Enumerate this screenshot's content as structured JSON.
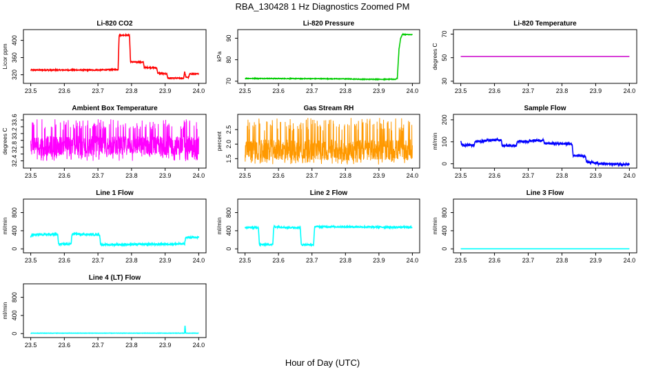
{
  "figure": {
    "title": "RBA_130428  1 Hz Diagnostics Zoomed PM",
    "xlabel": "Hour of Day (UTC)"
  },
  "chart_data": [
    {
      "type": "line",
      "title": "Li-820 CO2",
      "ylabel": "Licor ppm",
      "color": "#ff0000",
      "xlim": [
        23.5,
        24.0
      ],
      "ylim": [
        305,
        420
      ],
      "x_ticks": [
        23.5,
        23.6,
        23.7,
        23.8,
        23.9,
        24.0
      ],
      "y_ticks": [
        320,
        360,
        400
      ],
      "x_tick_labels": [
        "23.5",
        "23.6",
        "23.7",
        "23.8",
        "23.9",
        "24.0"
      ],
      "y_tick_labels": [
        "320",
        "360",
        "400"
      ],
      "noise": 1.2,
      "series": [
        {
          "points": [
            [
              23.5,
              331
            ],
            [
              23.7,
              331
            ],
            [
              23.76,
              332
            ],
            [
              23.763,
              412
            ],
            [
              23.794,
              412
            ],
            [
              23.797,
              350
            ],
            [
              23.835,
              349
            ],
            [
              23.838,
              337
            ],
            [
              23.875,
              336
            ],
            [
              23.878,
              324
            ],
            [
              23.905,
              322
            ],
            [
              23.908,
              312
            ],
            [
              23.955,
              312
            ],
            [
              23.958,
              327
            ],
            [
              23.962,
              314
            ],
            [
              23.97,
              314
            ],
            [
              23.973,
              322
            ],
            [
              24.0,
              322
            ]
          ]
        }
      ]
    },
    {
      "type": "line",
      "title": "Li-820 Pressure",
      "ylabel": "kPa",
      "color": "#00cc00",
      "xlim": [
        23.5,
        24.0
      ],
      "ylim": [
        70,
        93
      ],
      "x_ticks": [
        23.5,
        23.6,
        23.7,
        23.8,
        23.9,
        24.0
      ],
      "y_ticks": [
        70,
        80,
        90
      ],
      "x_tick_labels": [
        "23.5",
        "23.6",
        "23.7",
        "23.8",
        "23.9",
        "24.0"
      ],
      "y_tick_labels": [
        "70",
        "80",
        "90"
      ],
      "noise": 0.15,
      "series": [
        {
          "points": [
            [
              23.5,
              71.3
            ],
            [
              23.65,
              71.2
            ],
            [
              23.8,
              71.1
            ],
            [
              23.85,
              70.9
            ],
            [
              23.95,
              70.9
            ],
            [
              23.955,
              71.5
            ],
            [
              23.96,
              85
            ],
            [
              23.965,
              90
            ],
            [
              23.97,
              91.8
            ],
            [
              24.0,
              91.6
            ]
          ]
        }
      ]
    },
    {
      "type": "line",
      "title": "Li-820 Temperature",
      "ylabel": "degrees C",
      "color": "#cc00cc",
      "xlim": [
        23.5,
        24.0
      ],
      "ylim": [
        30,
        72
      ],
      "x_ticks": [
        23.5,
        23.6,
        23.7,
        23.8,
        23.9,
        24.0
      ],
      "y_ticks": [
        30,
        50,
        70
      ],
      "x_tick_labels": [
        "23.5",
        "23.6",
        "23.7",
        "23.8",
        "23.9",
        "24.0"
      ],
      "y_tick_labels": [
        "30",
        "50",
        "70"
      ],
      "noise": 0,
      "series": [
        {
          "points": [
            [
              23.5,
              51
            ],
            [
              24.0,
              51
            ]
          ]
        }
      ]
    },
    {
      "type": "line",
      "title": "Ambient Box Temperature",
      "ylabel": "degrees C",
      "color": "#ff00ff",
      "xlim": [
        23.5,
        24.0
      ],
      "ylim": [
        32.25,
        33.7
      ],
      "x_ticks": [
        23.5,
        23.6,
        23.7,
        23.8,
        23.9,
        24.0
      ],
      "y_ticks": [
        32.4,
        32.6,
        32.8,
        33.0,
        33.2,
        33.4,
        33.6
      ],
      "x_tick_labels": [
        "23.5",
        "23.6",
        "23.7",
        "23.8",
        "23.9",
        "24.0"
      ],
      "y_tick_labels": [
        "32.4",
        "",
        "32.8",
        "",
        "33.2",
        "",
        "33.6"
      ],
      "noise": 0,
      "oscillate": {
        "low": 32.38,
        "high": 33.62,
        "center": 32.85
      },
      "series": [
        {
          "points": [
            [
              23.5,
              32.85
            ],
            [
              24.0,
              32.85
            ]
          ]
        }
      ]
    },
    {
      "type": "line",
      "title": "Gas Stream RH",
      "ylabel": "percent",
      "color": "#ff9900",
      "xlim": [
        23.5,
        24.0
      ],
      "ylim": [
        1.25,
        2.95
      ],
      "x_ticks": [
        23.5,
        23.6,
        23.7,
        23.8,
        23.9,
        24.0
      ],
      "y_ticks": [
        1.5,
        2.0,
        2.5
      ],
      "x_tick_labels": [
        "23.5",
        "23.6",
        "23.7",
        "23.8",
        "23.9",
        "24.0"
      ],
      "y_tick_labels": [
        "1.5",
        "2.0",
        "2.5"
      ],
      "noise": 0,
      "oscillate": {
        "low": 1.3,
        "high": 2.9,
        "center": 1.8
      },
      "series": [
        {
          "points": [
            [
              23.5,
              1.8
            ],
            [
              24.0,
              1.8
            ]
          ]
        }
      ]
    },
    {
      "type": "line",
      "title": "Sample Flow",
      "ylabel": "ml/min",
      "color": "#0000ff",
      "xlim": [
        23.5,
        24.0
      ],
      "ylim": [
        -10,
        215
      ],
      "x_ticks": [
        23.5,
        23.6,
        23.7,
        23.8,
        23.9,
        24.0
      ],
      "y_ticks": [
        0,
        100,
        200
      ],
      "x_tick_labels": [
        "23.5",
        "23.6",
        "23.7",
        "23.8",
        "23.9",
        "24.0"
      ],
      "y_tick_labels": [
        "0",
        "100",
        "200"
      ],
      "noise": 5,
      "series": [
        {
          "points": [
            [
              23.5,
              105
            ],
            [
              23.503,
              85
            ],
            [
              23.54,
              85
            ],
            [
              23.543,
              102
            ],
            [
              23.575,
              103
            ],
            [
              23.578,
              108
            ],
            [
              23.62,
              108
            ],
            [
              23.623,
              82
            ],
            [
              23.665,
              82
            ],
            [
              23.668,
              101
            ],
            [
              23.7,
              100
            ],
            [
              23.703,
              106
            ],
            [
              23.745,
              106
            ],
            [
              23.748,
              93
            ],
            [
              23.83,
              90
            ],
            [
              23.833,
              38
            ],
            [
              23.87,
              35
            ],
            [
              23.873,
              8
            ],
            [
              23.905,
              5
            ],
            [
              23.908,
              0
            ],
            [
              24.0,
              -3
            ]
          ]
        }
      ]
    },
    {
      "type": "line",
      "title": "Line 1 Flow",
      "ylabel": "ml/min",
      "color": "#00ffff",
      "xlim": [
        23.5,
        24.0
      ],
      "ylim": [
        -40,
        1050
      ],
      "x_ticks": [
        23.5,
        23.6,
        23.7,
        23.8,
        23.9,
        24.0
      ],
      "y_ticks": [
        0,
        400,
        800
      ],
      "x_tick_labels": [
        "23.5",
        "23.6",
        "23.7",
        "23.8",
        "23.9",
        "24.0"
      ],
      "y_tick_labels": [
        "0",
        "400",
        "800"
      ],
      "noise": 20,
      "series": [
        {
          "points": [
            [
              23.5,
              250
            ],
            [
              23.503,
              310
            ],
            [
              23.58,
              320
            ],
            [
              23.583,
              100
            ],
            [
              23.62,
              110
            ],
            [
              23.623,
              330
            ],
            [
              23.705,
              310
            ],
            [
              23.708,
              90
            ],
            [
              23.958,
              110
            ],
            [
              23.961,
              250
            ],
            [
              24.0,
              250
            ]
          ]
        }
      ]
    },
    {
      "type": "line",
      "title": "Line 2 Flow",
      "ylabel": "ml/min",
      "color": "#00ffff",
      "xlim": [
        23.5,
        24.0
      ],
      "ylim": [
        -40,
        1050
      ],
      "x_ticks": [
        23.5,
        23.6,
        23.7,
        23.8,
        23.9,
        24.0
      ],
      "y_ticks": [
        0,
        400,
        800
      ],
      "x_tick_labels": [
        "23.5",
        "23.6",
        "23.7",
        "23.8",
        "23.9",
        "24.0"
      ],
      "y_tick_labels": [
        "0",
        "400",
        "800"
      ],
      "noise": 15,
      "series": [
        {
          "points": [
            [
              23.5,
              470
            ],
            [
              23.54,
              470
            ],
            [
              23.543,
              95
            ],
            [
              23.583,
              95
            ],
            [
              23.586,
              490
            ],
            [
              23.63,
              470
            ],
            [
              23.665,
              470
            ],
            [
              23.668,
              90
            ],
            [
              23.705,
              90
            ],
            [
              23.708,
              490
            ],
            [
              24.0,
              475
            ]
          ]
        }
      ]
    },
    {
      "type": "line",
      "title": "Line 3 Flow",
      "ylabel": "ml/min",
      "color": "#00ffff",
      "xlim": [
        23.5,
        24.0
      ],
      "ylim": [
        -40,
        1050
      ],
      "x_ticks": [
        23.5,
        23.6,
        23.7,
        23.8,
        23.9,
        24.0
      ],
      "y_ticks": [
        0,
        400,
        800
      ],
      "x_tick_labels": [
        "23.5",
        "23.6",
        "23.7",
        "23.8",
        "23.9",
        "24.0"
      ],
      "y_tick_labels": [
        "0",
        "400",
        "800"
      ],
      "noise": 0,
      "series": [
        {
          "points": [
            [
              23.5,
              0
            ],
            [
              24.0,
              0
            ]
          ]
        }
      ]
    },
    {
      "type": "line",
      "title": "Line 4 (LT) Flow",
      "ylabel": "ml/min",
      "color": "#00ffff",
      "xlim": [
        23.5,
        24.0
      ],
      "ylim": [
        -40,
        1050
      ],
      "x_ticks": [
        23.5,
        23.6,
        23.7,
        23.8,
        23.9,
        24.0
      ],
      "y_ticks": [
        0,
        400,
        800
      ],
      "x_tick_labels": [
        "23.5",
        "23.6",
        "23.7",
        "23.8",
        "23.9",
        "24.0"
      ],
      "y_tick_labels": [
        "0",
        "400",
        "800"
      ],
      "noise": 3,
      "series": [
        {
          "points": [
            [
              23.5,
              10
            ],
            [
              23.958,
              10
            ],
            [
              23.959,
              200
            ],
            [
              23.961,
              10
            ],
            [
              24.0,
              10
            ]
          ]
        }
      ]
    }
  ]
}
